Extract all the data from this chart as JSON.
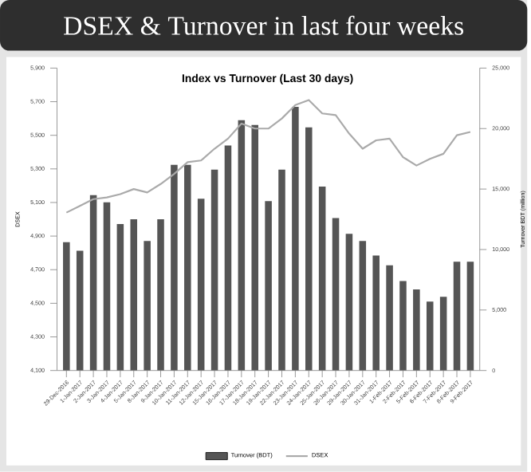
{
  "chart_data": {
    "type": "bar",
    "title": "DSEX & Turnover in last four weeks",
    "subtitle": "Index vs Turnover (Last 30 days)",
    "ylabel": "DSEX",
    "y2label": "Turnover BDT (million)",
    "categories": [
      "29-Dec-2016",
      "1-Jan-2017",
      "2-Jan-2017",
      "3-Jan-2017",
      "4-Jan-2017",
      "5-Jan-2017",
      "8-Jan-2017",
      "9-Jan-2017",
      "10-Jan-2017",
      "11-Jan-2017",
      "12-Jan-2017",
      "15-Jan-2017",
      "16-Jan-2017",
      "17-Jan-2017",
      "18-Jan-2017",
      "19-Jan-2017",
      "22-Jan-2017",
      "23-Jan-2017",
      "24-Jan-2017",
      "25-Jan-2017",
      "26-Jan-2017",
      "29-Jan-2017",
      "30-Jan-2017",
      "31-Jan-2017",
      "1-Feb-2017",
      "2-Feb-2017",
      "5-Feb-2017",
      "6-Feb-2017",
      "7-Feb-2017",
      "8-Feb-2017",
      "9-Feb-2017"
    ],
    "series": [
      {
        "name": "Turnover (BDT)",
        "axis": "y2",
        "color": "#555555",
        "values": [
          10600,
          9900,
          14500,
          13900,
          12100,
          12500,
          10700,
          12500,
          17000,
          17000,
          14200,
          16600,
          18600,
          20700,
          20300,
          14000,
          16600,
          21800,
          20100,
          15200,
          12600,
          11300,
          10700,
          9500,
          8700,
          7400,
          6700,
          5700,
          6100,
          9000,
          9000
        ]
      },
      {
        "name": "DSEX",
        "type": "line",
        "color": "#aaaaaa",
        "values": [
          5040,
          5080,
          5120,
          5130,
          5150,
          5180,
          5160,
          5210,
          5270,
          5340,
          5350,
          5420,
          5480,
          5570,
          5540,
          5540,
          5600,
          5680,
          5710,
          5630,
          5620,
          5510,
          5420,
          5470,
          5480,
          5370,
          5320,
          5360,
          5390,
          5500,
          5520
        ]
      }
    ],
    "ylim": [
      4100,
      5900
    ],
    "yticks": [
      {
        "value": 4100,
        "label": "4,100"
      },
      {
        "value": 4300,
        "label": "4,300"
      },
      {
        "value": 4500,
        "label": "4,500"
      },
      {
        "value": 4700,
        "label": "4,700"
      },
      {
        "value": 4900,
        "label": "4,900"
      },
      {
        "value": 5100,
        "label": "5,100"
      },
      {
        "value": 5300,
        "label": "5,300"
      },
      {
        "value": 5500,
        "label": "5,500"
      },
      {
        "value": 5700,
        "label": "5,700"
      },
      {
        "value": 5900,
        "label": "5,900"
      }
    ],
    "y2lim": [
      0,
      25000
    ],
    "y2ticks": [
      0,
      {
        "value": 5000,
        "label": "5,000"
      },
      {
        "value": 10000,
        "label": "10,000"
      },
      {
        "value": 15000,
        "label": "15,000"
      },
      {
        "value": 20000,
        "label": "20,000"
      },
      {
        "value": 25000,
        "label": "25,000"
      }
    ],
    "legend": "bottom"
  }
}
